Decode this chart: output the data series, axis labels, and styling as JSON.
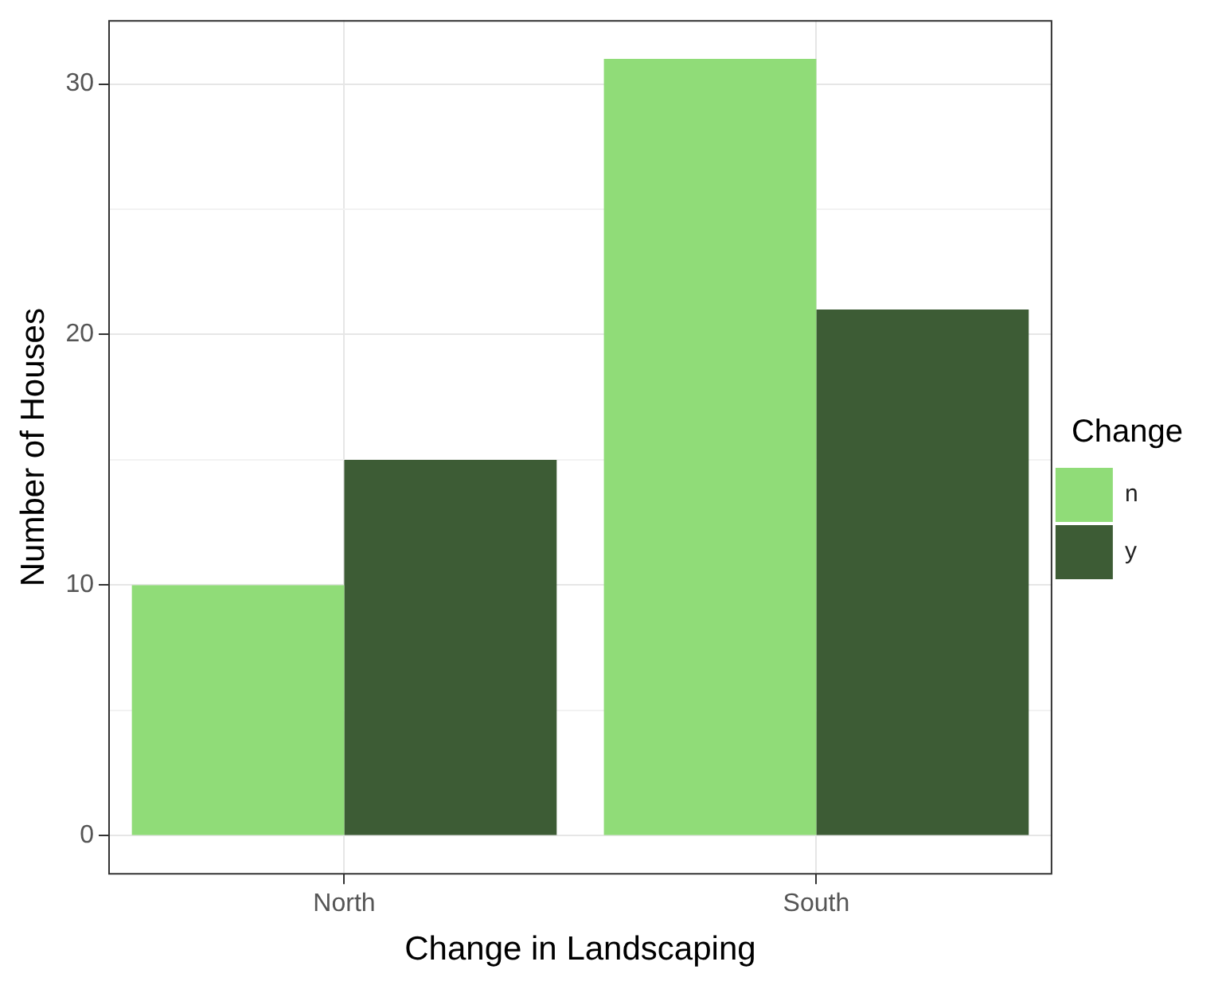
{
  "chart_data": {
    "type": "bar",
    "xlabel": "Change in Landscaping",
    "ylabel": "Number of Houses",
    "legend_title": "Change",
    "categories": [
      "North",
      "South"
    ],
    "series": [
      {
        "name": "n",
        "color": "#90dc78",
        "values": [
          10,
          31
        ]
      },
      {
        "name": "y",
        "color": "#3d5c35",
        "values": [
          15,
          21
        ]
      }
    ],
    "ylim": [
      -1.55,
      32.55
    ],
    "yticks": [
      0,
      {
        "value": 5,
        "label": null
      },
      10,
      {
        "value": 15,
        "label": null
      },
      20,
      {
        "value": 25,
        "label": null
      },
      30
    ],
    "grid": true,
    "legend": "right"
  }
}
